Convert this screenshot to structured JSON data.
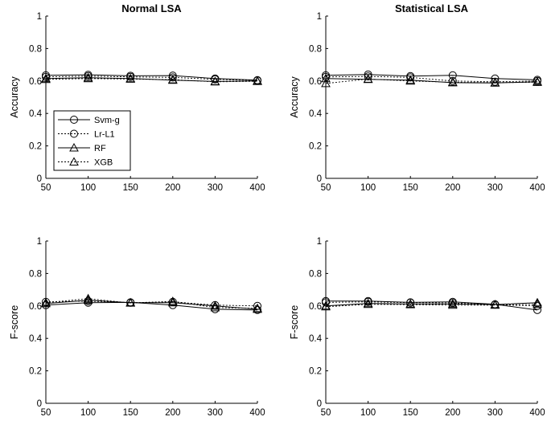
{
  "chart_data": [
    {
      "type": "line",
      "title": "Normal LSA",
      "xlabel": "",
      "ylabel": "Accuracy",
      "categories": [
        "50",
        "100",
        "150",
        "200",
        "300",
        "400"
      ],
      "yticks": [
        "0",
        "0.2",
        "0.4",
        "0.6",
        "0.8",
        "1"
      ],
      "ylim": [
        0,
        1
      ],
      "legend": "inside-left",
      "series": [
        {
          "name": "Svm-g",
          "values": [
            0.635,
            0.638,
            0.632,
            0.633,
            0.615,
            0.605
          ]
        },
        {
          "name": "Lr-L1",
          "values": [
            0.625,
            0.63,
            0.625,
            0.622,
            0.61,
            0.603
          ]
        },
        {
          "name": "RF",
          "values": [
            0.615,
            0.62,
            0.615,
            0.605,
            0.597,
            0.6
          ]
        },
        {
          "name": "XGB",
          "values": [
            0.61,
            0.615,
            0.612,
            0.608,
            0.595,
            0.598
          ]
        }
      ]
    },
    {
      "type": "line",
      "title": "Statistical LSA",
      "xlabel": "",
      "ylabel": "Accuracy",
      "categories": [
        "50",
        "100",
        "150",
        "200",
        "300",
        "400"
      ],
      "yticks": [
        "0",
        "0.2",
        "0.4",
        "0.6",
        "0.8",
        "1"
      ],
      "ylim": [
        0,
        1
      ],
      "legend": "none",
      "series": [
        {
          "name": "Svm-g",
          "values": [
            0.635,
            0.64,
            0.63,
            0.635,
            0.615,
            0.607
          ]
        },
        {
          "name": "Lr-L1",
          "values": [
            0.625,
            0.628,
            0.622,
            0.6,
            0.595,
            0.6
          ]
        },
        {
          "name": "RF",
          "values": [
            0.615,
            0.61,
            0.605,
            0.59,
            0.588,
            0.595
          ]
        },
        {
          "name": "XGB",
          "values": [
            0.585,
            0.612,
            0.6,
            0.592,
            0.59,
            0.592
          ]
        }
      ]
    },
    {
      "type": "line",
      "title": "",
      "xlabel": "",
      "ylabel": "F-score",
      "categories": [
        "50",
        "100",
        "150",
        "200",
        "300",
        "400"
      ],
      "yticks": [
        "0",
        "0.2",
        "0.4",
        "0.6",
        "0.8",
        "1"
      ],
      "ylim": [
        0,
        1
      ],
      "legend": "none",
      "series": [
        {
          "name": "Svm-g",
          "values": [
            0.605,
            0.62,
            0.622,
            0.605,
            0.58,
            0.575
          ]
        },
        {
          "name": "Lr-L1",
          "values": [
            0.625,
            0.63,
            0.62,
            0.625,
            0.605,
            0.6
          ]
        },
        {
          "name": "RF",
          "values": [
            0.615,
            0.635,
            0.62,
            0.62,
            0.6,
            0.58
          ]
        },
        {
          "name": "XGB",
          "values": [
            0.62,
            0.645,
            0.618,
            0.628,
            0.59,
            0.585
          ]
        }
      ]
    },
    {
      "type": "line",
      "title": "",
      "xlabel": "",
      "ylabel": "F-score",
      "categories": [
        "50",
        "100",
        "150",
        "200",
        "300",
        "400"
      ],
      "yticks": [
        "0",
        "0.2",
        "0.4",
        "0.6",
        "0.8",
        "1"
      ],
      "ylim": [
        0,
        1
      ],
      "legend": "none",
      "series": [
        {
          "name": "Svm-g",
          "values": [
            0.63,
            0.63,
            0.622,
            0.625,
            0.61,
            0.575
          ]
        },
        {
          "name": "Lr-L1",
          "values": [
            0.622,
            0.625,
            0.62,
            0.618,
            0.608,
            0.6
          ]
        },
        {
          "name": "RF",
          "values": [
            0.6,
            0.615,
            0.612,
            0.612,
            0.608,
            0.62
          ]
        },
        {
          "name": "XGB",
          "values": [
            0.595,
            0.61,
            0.608,
            0.605,
            0.605,
            0.61
          ]
        }
      ]
    }
  ]
}
